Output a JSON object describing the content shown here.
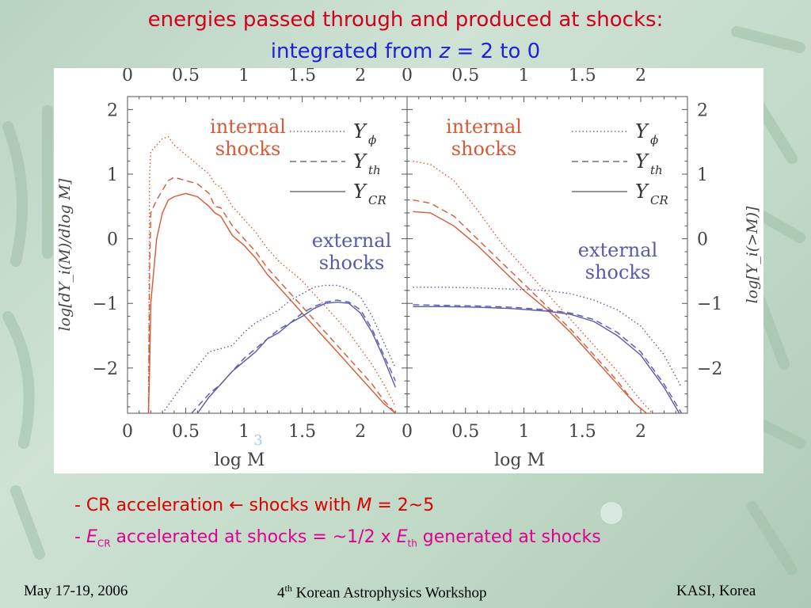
{
  "title": {
    "line1": "energies passed through and produced at shocks:",
    "line2_prefix": "integrated from ",
    "line2_z": "z",
    "line2_suffix": " = 2 to 0"
  },
  "colors": {
    "internal": "#d45a38",
    "external": "#5a5aa8",
    "title_red": "#d4001a",
    "title_blue": "#1f1fe0",
    "note_magenta": "#e00090"
  },
  "notes": {
    "line1": {
      "prefix": "- CR acceleration ",
      "arrow": "←",
      "mid": " shocks with ",
      "M": "M",
      "suffix": " = 2~5"
    },
    "line2": {
      "prefix": "- ",
      "E1": "E",
      "sub1": "CR",
      "mid": " accelerated at shocks = ~1/2 x ",
      "E2": "E",
      "sub2": "th",
      "suffix": " generated at shocks"
    }
  },
  "footer": {
    "date": "May 17-19, 2006",
    "workshop_num": "4",
    "workshop_sup": "th",
    "workshop_rest": " Korean Astrophysics Workshop",
    "org": "KASI, Korea"
  },
  "chart_data": [
    {
      "type": "line",
      "panel": "left",
      "xlabel": "log M",
      "ylabel": "log[dY_i(M)/dlog M]",
      "xlim": [
        0,
        2.4
      ],
      "ylim": [
        -2.7,
        2.2
      ],
      "xticks": [
        "0",
        "0.5",
        "1",
        "1.5",
        "2"
      ],
      "yticks": [
        "2",
        "1",
        "0",
        "−1",
        "−2"
      ],
      "annotations": {
        "internal_1": "internal",
        "internal_2": "shocks",
        "external_1": "external",
        "external_2": "shocks",
        "page_number": "3"
      },
      "legend": [
        {
          "symbol": "Y",
          "sub": "ϕ",
          "style": "dotted"
        },
        {
          "symbol": "Y",
          "sub": "th",
          "style": "dashed"
        },
        {
          "symbol": "Y",
          "sub": "CR",
          "style": "solid"
        }
      ],
      "series": [
        {
          "group": "internal",
          "quantity": "Y_phi",
          "style": "dotted",
          "x": [
            0.18,
            0.19,
            0.2,
            0.25,
            0.3,
            0.35,
            0.4,
            0.5,
            0.6,
            0.7,
            0.75,
            0.8,
            0.9,
            1.0,
            1.1,
            1.2,
            1.3,
            1.4,
            1.5,
            1.6,
            1.7,
            1.8,
            1.9,
            2.0,
            2.1,
            2.2,
            2.3
          ],
          "y": [
            -2.7,
            1.0,
            1.35,
            1.45,
            1.55,
            1.58,
            1.45,
            1.3,
            1.15,
            1.0,
            0.85,
            0.8,
            0.5,
            0.3,
            0.1,
            -0.15,
            -0.35,
            -0.5,
            -0.65,
            -0.85,
            -1.05,
            -1.25,
            -1.45,
            -1.7,
            -1.95,
            -2.25,
            -2.6
          ]
        },
        {
          "group": "internal",
          "quantity": "Y_th",
          "style": "dashed",
          "x": [
            0.18,
            0.19,
            0.2,
            0.25,
            0.3,
            0.35,
            0.4,
            0.5,
            0.6,
            0.7,
            0.75,
            0.8,
            0.9,
            1.0,
            1.1,
            1.2,
            1.3,
            1.4,
            1.5,
            1.6,
            1.7,
            1.8,
            1.9,
            2.0,
            2.1,
            2.2,
            2.3
          ],
          "y": [
            -2.7,
            -0.5,
            0.4,
            0.6,
            0.75,
            0.9,
            0.95,
            0.9,
            0.85,
            0.7,
            0.5,
            0.48,
            0.2,
            0.0,
            -0.2,
            -0.45,
            -0.65,
            -0.85,
            -1.05,
            -1.25,
            -1.45,
            -1.65,
            -1.85,
            -2.05,
            -2.25,
            -2.5,
            -2.7
          ]
        },
        {
          "group": "internal",
          "quantity": "Y_CR",
          "style": "solid",
          "x": [
            0.18,
            0.19,
            0.2,
            0.25,
            0.3,
            0.35,
            0.4,
            0.5,
            0.6,
            0.7,
            0.75,
            0.8,
            0.9,
            1.0,
            1.1,
            1.2,
            1.3,
            1.4,
            1.5,
            1.6,
            1.7,
            1.8,
            1.9,
            2.0,
            2.1,
            2.2,
            2.3
          ],
          "y": [
            -2.7,
            -2.0,
            -1.0,
            0.0,
            0.4,
            0.6,
            0.65,
            0.7,
            0.65,
            0.5,
            0.4,
            0.35,
            0.05,
            -0.1,
            -0.3,
            -0.55,
            -0.75,
            -0.95,
            -1.15,
            -1.35,
            -1.55,
            -1.75,
            -1.95,
            -2.15,
            -2.35,
            -2.55,
            -2.7
          ]
        },
        {
          "group": "external",
          "quantity": "Y_phi",
          "style": "dotted",
          "x": [
            0.3,
            0.5,
            0.7,
            0.8,
            0.9,
            1.0,
            1.1,
            1.2,
            1.3,
            1.4,
            1.5,
            1.6,
            1.7,
            1.8,
            1.9,
            2.0,
            2.1,
            2.2,
            2.3
          ],
          "y": [
            -2.7,
            -2.2,
            -1.75,
            -1.7,
            -1.65,
            -1.45,
            -1.3,
            -1.2,
            -1.1,
            -0.95,
            -0.85,
            -0.75,
            -0.72,
            -0.72,
            -0.78,
            -0.9,
            -1.2,
            -1.6,
            -2.0
          ]
        },
        {
          "group": "external",
          "quantity": "Y_th",
          "style": "dashed",
          "x": [
            0.55,
            0.7,
            0.8,
            0.9,
            1.0,
            1.1,
            1.2,
            1.3,
            1.4,
            1.5,
            1.6,
            1.7,
            1.8,
            1.9,
            2.0,
            2.1,
            2.2,
            2.3
          ],
          "y": [
            -2.7,
            -2.4,
            -2.25,
            -2.05,
            -1.85,
            -1.7,
            -1.55,
            -1.4,
            -1.3,
            -1.15,
            -1.05,
            -0.98,
            -0.95,
            -0.98,
            -1.1,
            -1.4,
            -1.8,
            -2.2
          ]
        },
        {
          "group": "external",
          "quantity": "Y_CR",
          "style": "solid",
          "x": [
            0.6,
            0.7,
            0.8,
            0.9,
            1.0,
            1.1,
            1.2,
            1.3,
            1.4,
            1.5,
            1.6,
            1.7,
            1.8,
            1.9,
            2.0,
            2.1,
            2.2,
            2.3
          ],
          "y": [
            -2.7,
            -2.45,
            -2.25,
            -2.05,
            -1.9,
            -1.75,
            -1.55,
            -1.45,
            -1.3,
            -1.2,
            -1.08,
            -1.0,
            -0.98,
            -1.0,
            -1.15,
            -1.45,
            -1.85,
            -2.3
          ]
        }
      ]
    },
    {
      "type": "line",
      "panel": "right",
      "xlabel": "log M",
      "ylabel": "log[Y_i(>M)]",
      "xlim": [
        0,
        2.4
      ],
      "ylim": [
        -2.7,
        2.2
      ],
      "xticks": [
        "0",
        "0.5",
        "1",
        "1.5",
        "2"
      ],
      "yticks": [
        "2",
        "1",
        "0",
        "−1",
        "−2"
      ],
      "annotations": {
        "internal_1": "internal",
        "internal_2": "shocks",
        "external_1": "external",
        "external_2": "shocks"
      },
      "legend": [
        {
          "symbol": "Y",
          "sub": "ϕ",
          "style": "dotted"
        },
        {
          "symbol": "Y",
          "sub": "th",
          "style": "dashed"
        },
        {
          "symbol": "Y",
          "sub": "CR",
          "style": "solid"
        }
      ],
      "series": [
        {
          "group": "internal",
          "quantity": "Y_phi",
          "style": "dotted",
          "x": [
            0.05,
            0.2,
            0.4,
            0.6,
            0.8,
            1.0,
            1.2,
            1.4,
            1.6,
            1.8,
            2.0,
            2.1
          ],
          "y": [
            1.2,
            1.15,
            0.9,
            0.45,
            -0.05,
            -0.45,
            -0.85,
            -1.25,
            -1.65,
            -2.05,
            -2.5,
            -2.7
          ]
        },
        {
          "group": "internal",
          "quantity": "Y_th",
          "style": "dashed",
          "x": [
            0.05,
            0.2,
            0.4,
            0.6,
            0.8,
            1.0,
            1.2,
            1.4,
            1.6,
            1.8,
            1.95,
            2.05
          ],
          "y": [
            0.6,
            0.55,
            0.35,
            0.0,
            -0.35,
            -0.7,
            -1.05,
            -1.4,
            -1.8,
            -2.2,
            -2.55,
            -2.7
          ]
        },
        {
          "group": "internal",
          "quantity": "Y_CR",
          "style": "solid",
          "x": [
            0.05,
            0.2,
            0.4,
            0.6,
            0.8,
            1.0,
            1.2,
            1.4,
            1.6,
            1.8,
            1.95,
            2.05
          ],
          "y": [
            0.42,
            0.4,
            0.2,
            -0.1,
            -0.45,
            -0.8,
            -1.1,
            -1.45,
            -1.85,
            -2.25,
            -2.55,
            -2.7
          ]
        },
        {
          "group": "external",
          "quantity": "Y_phi",
          "style": "dotted",
          "x": [
            0.05,
            0.3,
            0.6,
            0.9,
            1.2,
            1.4,
            1.6,
            1.8,
            2.0,
            2.2,
            2.35
          ],
          "y": [
            -0.75,
            -0.75,
            -0.76,
            -0.78,
            -0.8,
            -0.85,
            -0.95,
            -1.1,
            -1.35,
            -1.8,
            -2.3
          ]
        },
        {
          "group": "external",
          "quantity": "Y_th",
          "style": "dashed",
          "x": [
            0.05,
            0.3,
            0.6,
            0.9,
            1.2,
            1.4,
            1.6,
            1.8,
            2.0,
            2.2,
            2.35
          ],
          "y": [
            -1.02,
            -1.03,
            -1.04,
            -1.06,
            -1.1,
            -1.15,
            -1.25,
            -1.45,
            -1.75,
            -2.25,
            -2.7
          ]
        },
        {
          "group": "external",
          "quantity": "Y_CR",
          "style": "solid",
          "x": [
            0.05,
            0.3,
            0.6,
            0.9,
            1.2,
            1.4,
            1.6,
            1.8,
            2.0,
            2.2,
            2.33
          ],
          "y": [
            -1.05,
            -1.05,
            -1.06,
            -1.08,
            -1.12,
            -1.17,
            -1.28,
            -1.5,
            -1.8,
            -2.3,
            -2.7
          ]
        }
      ]
    }
  ]
}
